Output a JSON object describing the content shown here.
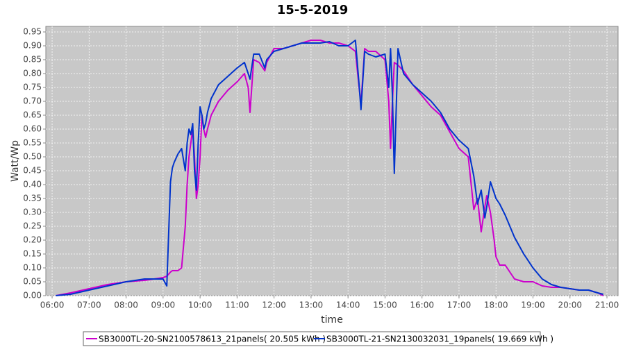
{
  "chart_data": {
    "type": "line",
    "title": "15-5-2019",
    "x_label": "time",
    "y_label": "Watt/Wp",
    "xlim": [
      5.83,
      21.3
    ],
    "ylim": [
      0,
      0.97
    ],
    "grid": true,
    "legend": "bottom",
    "xticks": [
      {
        "value": 6,
        "label": "06:00"
      },
      {
        "value": 7,
        "label": "07:00"
      },
      {
        "value": 8,
        "label": "08:00"
      },
      {
        "value": 9,
        "label": "09:00"
      },
      {
        "value": 10,
        "label": "10:00"
      },
      {
        "value": 11,
        "label": "11:00"
      },
      {
        "value": 12,
        "label": "12:00"
      },
      {
        "value": 13,
        "label": "13:00"
      },
      {
        "value": 14,
        "label": "14:00"
      },
      {
        "value": 15,
        "label": "15:00"
      },
      {
        "value": 16,
        "label": "16:00"
      },
      {
        "value": 17,
        "label": "17:00"
      },
      {
        "value": 18,
        "label": "18:00"
      },
      {
        "value": 19,
        "label": "19:00"
      },
      {
        "value": 20,
        "label": "20:00"
      },
      {
        "value": 21,
        "label": "21:00"
      }
    ],
    "yticks": [
      {
        "value": 0,
        "label": "0.00"
      },
      0.05,
      {
        "value": 0.1,
        "label": "0.10"
      },
      0.15,
      {
        "value": 0.2,
        "label": "0.20"
      },
      0.25,
      {
        "value": 0.3,
        "label": "0.30"
      },
      0.35,
      {
        "value": 0.4,
        "label": "0.40"
      },
      0.45,
      {
        "value": 0.5,
        "label": "0.50"
      },
      0.55,
      {
        "value": 0.6,
        "label": "0.60"
      },
      0.65,
      {
        "value": 0.7,
        "label": "0.70"
      },
      0.75,
      {
        "value": 0.8,
        "label": "0.80"
      },
      0.85,
      {
        "value": 0.9,
        "label": "0.90"
      },
      0.95
    ],
    "x": [
      6.1,
      6.5,
      7.0,
      7.5,
      8.0,
      8.5,
      9.0,
      9.1,
      9.2,
      9.25,
      9.3,
      9.4,
      9.5,
      9.6,
      9.65,
      9.7,
      9.75,
      9.8,
      9.85,
      9.9,
      9.95,
      10.0,
      10.05,
      10.1,
      10.15,
      10.2,
      10.3,
      10.5,
      10.75,
      11.0,
      11.2,
      11.3,
      11.35,
      11.45,
      11.6,
      11.75,
      11.8,
      12.0,
      12.25,
      12.5,
      12.75,
      13.0,
      13.25,
      13.5,
      13.75,
      14.0,
      14.2,
      14.3,
      14.35,
      14.45,
      14.55,
      14.75,
      15.0,
      15.1,
      15.15,
      15.2,
      15.25,
      15.35,
      15.5,
      15.75,
      16.0,
      16.25,
      16.5,
      16.75,
      17.0,
      17.25,
      17.4,
      17.5,
      17.6,
      17.7,
      17.75,
      17.85,
      17.95,
      18.0,
      18.1,
      18.25,
      18.5,
      18.75,
      19.0,
      19.25,
      19.5,
      19.75,
      20.0,
      20.25,
      20.5,
      20.75,
      20.9
    ],
    "series": [
      {
        "name": "SB3000TL-20-SN2100578613_21panels( 20.505 kWh )",
        "color": "#cc00cc",
        "values": [
          0.0,
          0.01,
          0.025,
          0.04,
          0.05,
          0.055,
          0.065,
          0.07,
          0.085,
          0.09,
          0.09,
          0.09,
          0.1,
          0.25,
          0.4,
          0.5,
          0.55,
          0.6,
          0.5,
          0.35,
          0.4,
          0.5,
          0.65,
          0.6,
          0.57,
          0.6,
          0.65,
          0.7,
          0.74,
          0.77,
          0.8,
          0.75,
          0.66,
          0.85,
          0.84,
          0.81,
          0.84,
          0.89,
          0.89,
          0.9,
          0.91,
          0.92,
          0.92,
          0.91,
          0.91,
          0.9,
          0.88,
          0.75,
          0.69,
          0.89,
          0.88,
          0.88,
          0.85,
          0.7,
          0.53,
          0.7,
          0.84,
          0.83,
          0.81,
          0.76,
          0.72,
          0.68,
          0.65,
          0.59,
          0.53,
          0.5,
          0.31,
          0.35,
          0.23,
          0.32,
          0.36,
          0.3,
          0.2,
          0.14,
          0.11,
          0.11,
          0.06,
          0.05,
          0.05,
          0.035,
          0.03,
          0.03,
          0.025,
          0.02,
          0.02,
          0.01,
          0.0
        ]
      },
      {
        "name": "SB3000TL-21-SN2130032031_19panels( 19.669 kWh )",
        "color": "#0033cc",
        "values": [
          0.0,
          0.005,
          0.02,
          0.035,
          0.05,
          0.06,
          0.06,
          0.035,
          0.41,
          0.46,
          0.48,
          0.51,
          0.53,
          0.45,
          0.55,
          0.6,
          0.58,
          0.62,
          0.45,
          0.38,
          0.55,
          0.68,
          0.65,
          0.6,
          0.62,
          0.66,
          0.71,
          0.76,
          0.79,
          0.82,
          0.84,
          0.8,
          0.78,
          0.87,
          0.87,
          0.82,
          0.85,
          0.88,
          0.89,
          0.9,
          0.91,
          0.91,
          0.91,
          0.915,
          0.9,
          0.9,
          0.92,
          0.76,
          0.67,
          0.88,
          0.87,
          0.86,
          0.87,
          0.75,
          0.89,
          0.72,
          0.44,
          0.89,
          0.8,
          0.76,
          0.73,
          0.7,
          0.66,
          0.6,
          0.56,
          0.53,
          0.43,
          0.33,
          0.38,
          0.28,
          0.32,
          0.41,
          0.37,
          0.35,
          0.33,
          0.29,
          0.21,
          0.15,
          0.1,
          0.06,
          0.04,
          0.03,
          0.025,
          0.02,
          0.02,
          0.01,
          0.005
        ]
      }
    ]
  }
}
